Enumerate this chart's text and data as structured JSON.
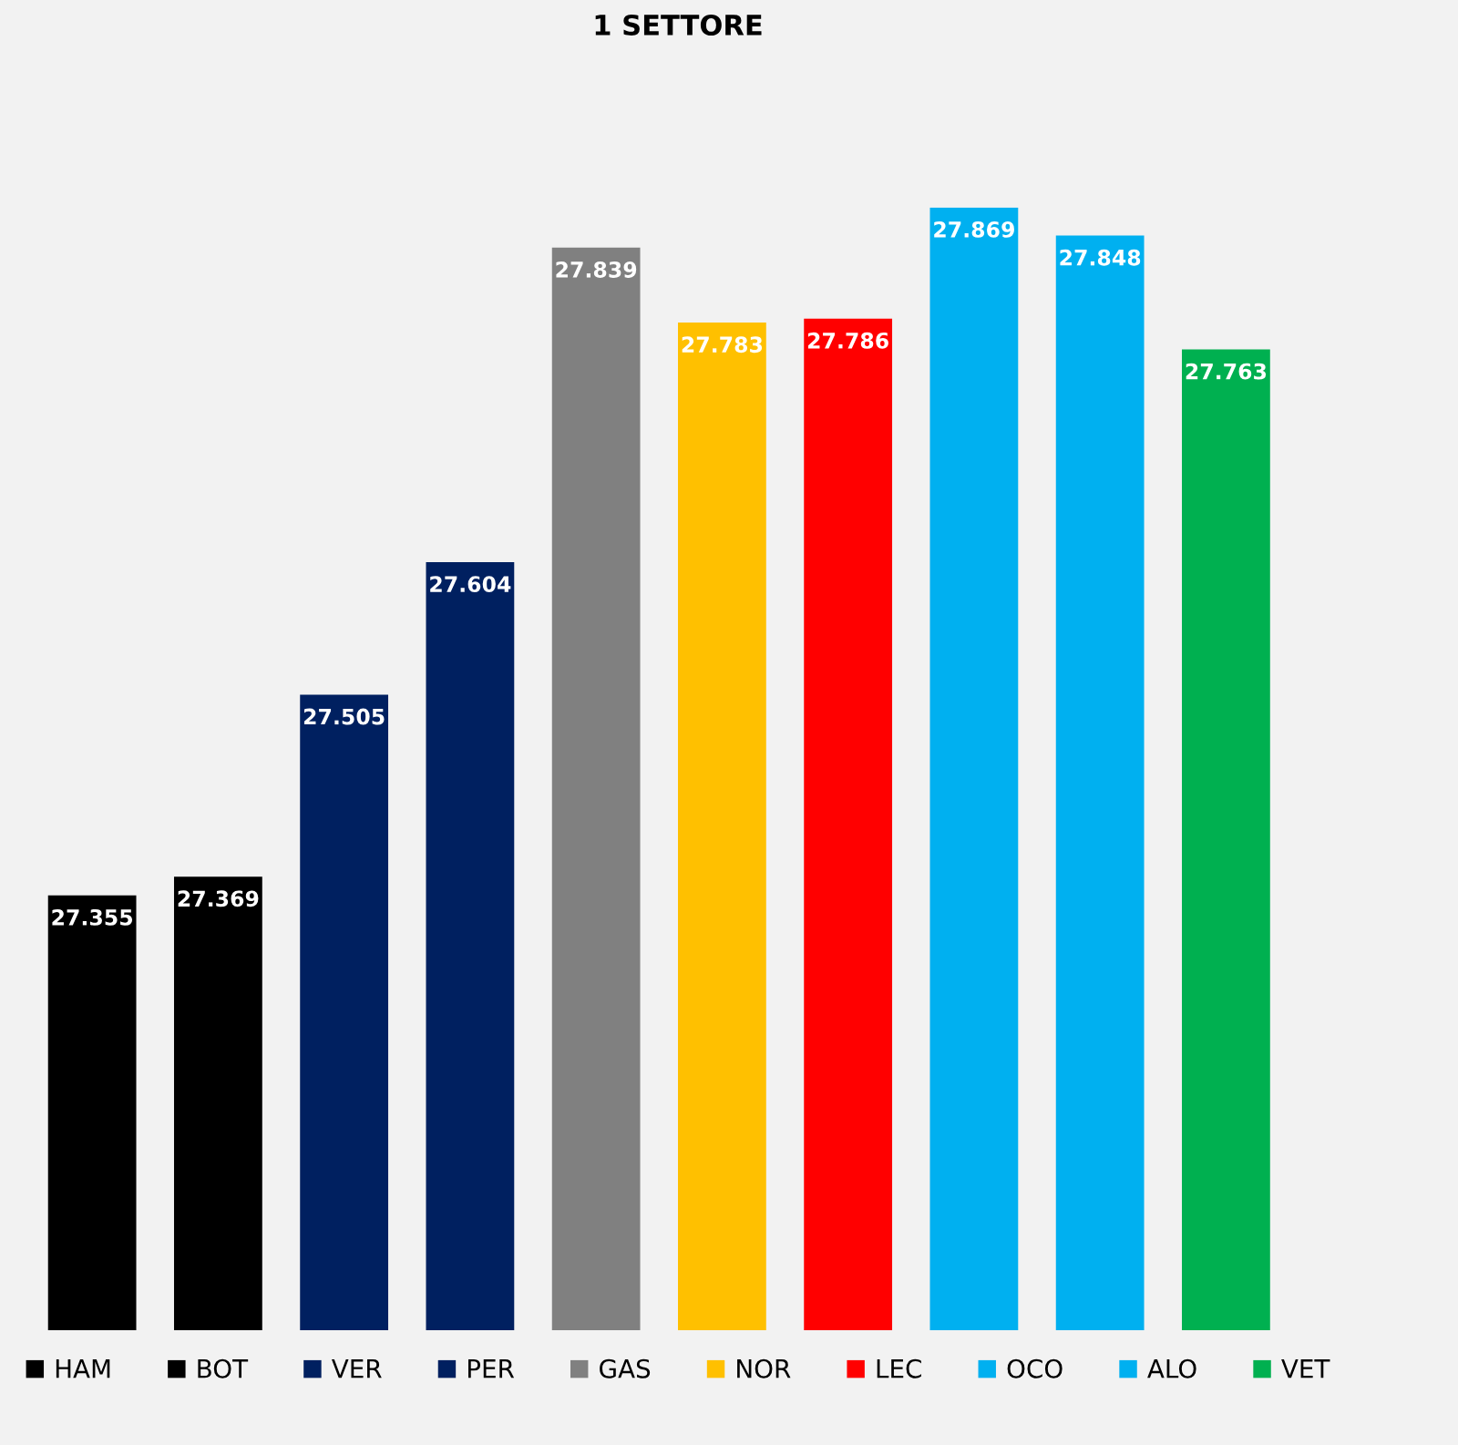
{
  "chart_data": {
    "type": "bar",
    "title": "1 SETTORE",
    "categories": [
      null,
      null,
      null,
      null,
      null,
      null,
      null,
      null,
      null,
      null
    ],
    "series": [
      {
        "name": "HAM",
        "color": "#000000",
        "values": [
          27.355,
          null,
          null,
          null,
          null,
          null,
          null,
          null,
          null,
          null
        ]
      },
      {
        "name": "BOT",
        "color": "#000000",
        "values": [
          null,
          27.369,
          null,
          null,
          null,
          null,
          null,
          null,
          null,
          null
        ]
      },
      {
        "name": "VER",
        "color": "#002060",
        "values": [
          null,
          null,
          27.505,
          null,
          null,
          null,
          null,
          null,
          null,
          null
        ]
      },
      {
        "name": "PER",
        "color": "#002060",
        "values": [
          null,
          null,
          null,
          27.604,
          null,
          null,
          null,
          null,
          null,
          null
        ]
      },
      {
        "name": "GAS",
        "color": "#808080",
        "values": [
          null,
          null,
          null,
          null,
          27.839,
          null,
          null,
          null,
          null,
          null
        ]
      },
      {
        "name": "NOR",
        "color": "#ffc000",
        "values": [
          null,
          null,
          null,
          null,
          null,
          27.783,
          null,
          null,
          null,
          null
        ]
      },
      {
        "name": "LEC",
        "color": "#ff0000",
        "values": [
          null,
          null,
          null,
          null,
          null,
          null,
          27.786,
          null,
          null,
          null
        ]
      },
      {
        "name": "OCO",
        "color": "#00b0f0",
        "values": [
          null,
          null,
          null,
          null,
          null,
          null,
          null,
          27.869,
          null,
          null
        ]
      },
      {
        "name": "ALO",
        "color": "#00b0f0",
        "values": [
          null,
          null,
          null,
          null,
          null,
          null,
          null,
          null,
          27.848,
          null
        ]
      },
      {
        "name": "VET",
        "color": "#00b050",
        "values": [
          null,
          null,
          null,
          null,
          null,
          null,
          null,
          null,
          null,
          27.763
        ]
      }
    ],
    "ylim": [
      27.03,
      27.869
    ],
    "stacked": true,
    "data_labels": true,
    "legend": "bottom",
    "grid": false
  }
}
